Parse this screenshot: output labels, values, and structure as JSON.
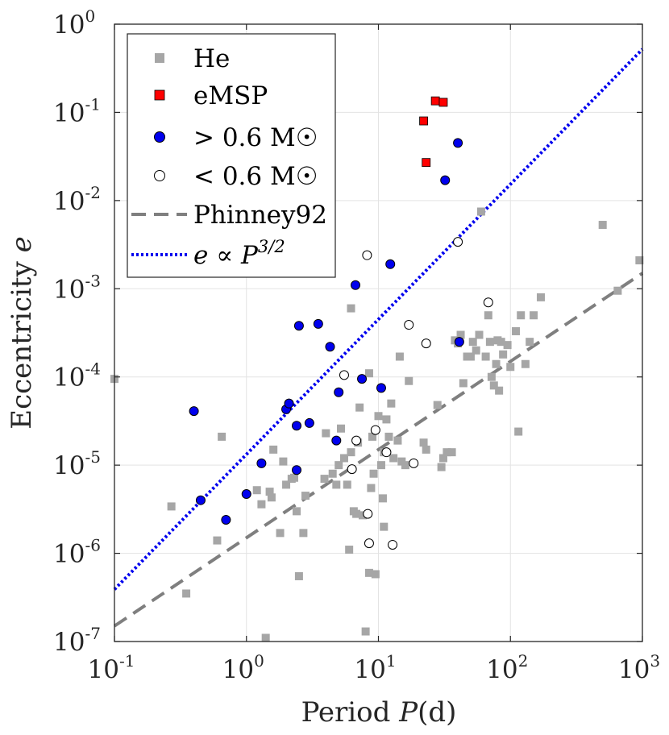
{
  "chart_data": {
    "type": "scatter",
    "xscale": "log",
    "yscale": "log",
    "xlim": [
      0.1,
      1000
    ],
    "ylim": [
      1e-07,
      1
    ],
    "xlabel_prefix": "Period ",
    "xlabel_var": "P",
    "xlabel_suffix": "(d)",
    "ylabel_prefix": "Eccentricity ",
    "ylabel_var": "e",
    "grid": true,
    "legend_position": "top-left",
    "x_ticks": [
      {
        "base": "10",
        "exp": "-1",
        "value": 0.1
      },
      {
        "base": "10",
        "exp": "0",
        "value": 1
      },
      {
        "base": "10",
        "exp": "1",
        "value": 10
      },
      {
        "base": "10",
        "exp": "2",
        "value": 100
      },
      {
        "base": "10",
        "exp": "3",
        "value": 1000
      }
    ],
    "y_ticks": [
      {
        "base": "10",
        "exp": "-7",
        "value": 1e-07
      },
      {
        "base": "10",
        "exp": "-6",
        "value": 1e-06
      },
      {
        "base": "10",
        "exp": "-5",
        "value": 1e-05
      },
      {
        "base": "10",
        "exp": "-4",
        "value": 0.0001
      },
      {
        "base": "10",
        "exp": "-3",
        "value": 0.001
      },
      {
        "base": "10",
        "exp": "-2",
        "value": 0.01
      },
      {
        "base": "10",
        "exp": "-1",
        "value": 0.1
      },
      {
        "base": "10",
        "exp": "0",
        "value": 1
      }
    ],
    "legend": [
      {
        "label": "He",
        "marker": "square",
        "color": "#a6a6a6"
      },
      {
        "label": "eMSP",
        "marker": "square",
        "color": "#ff0000"
      },
      {
        "label": "> 0.6 M☉",
        "marker": "circle",
        "color": "#0000ee"
      },
      {
        "label": "< 0.6 M☉",
        "marker": "circle",
        "color": "#ffffff"
      },
      {
        "label": "Phinney92",
        "marker": "dashed-line",
        "color": "#7f7f7f"
      },
      {
        "label": "e ∝ P",
        "superscript": "3/2",
        "marker": "dotted-line",
        "color": "#0000ee"
      }
    ],
    "lines": [
      {
        "name": "Phinney92",
        "style": "dashed",
        "color": "#7f7f7f",
        "x": [
          0.1,
          1000
        ],
        "y": [
          1.5e-07,
          0.0015
        ]
      },
      {
        "name": "e ∝ P^3/2",
        "style": "dotted",
        "color": "#0000ee",
        "x": [
          0.1,
          1000
        ],
        "y": [
          3.9e-07,
          0.52
        ]
      }
    ],
    "series": [
      {
        "name": "He",
        "marker": "square",
        "color": "#a6a6a6",
        "x": [
          0.1,
          0.27,
          0.35,
          0.6,
          0.65,
          1.2,
          1.3,
          1.4,
          1.5,
          1.55,
          1.6,
          1.8,
          1.9,
          2.0,
          2.2,
          2.3,
          2.4,
          2.5,
          2.7,
          2.8,
          3.9,
          4.0,
          4.5,
          4.8,
          5.0,
          5.2,
          5.5,
          5.8,
          6.0,
          6.2,
          6.5,
          6.8,
          7.0,
          7.2,
          7.6,
          8.0,
          8.5,
          8.8,
          9.0,
          9.2,
          9.5,
          10.0,
          10.5,
          10.8,
          11.0,
          11.5,
          12.0,
          12.5,
          13.0,
          14.0,
          14.5,
          15.0,
          16.0,
          17.0,
          22.0,
          23.0,
          28.0,
          30.0,
          31.0,
          33.0,
          36.0,
          38.0,
          40.0,
          42.0,
          44.0,
          47.0,
          50.0,
          52.0,
          55.0,
          58.0,
          60.0,
          65.0,
          68.0,
          70.0,
          72.0,
          75.0,
          78.0,
          80.0,
          82.0,
          85.0,
          88.0,
          95.0,
          100.0,
          110.0,
          115.0,
          120.0,
          130.0,
          140.0,
          150.0,
          170.0,
          500.0,
          650.0,
          950.0,
          6.2,
          8.5,
          11.0
        ],
        "y": [
          9.5e-05,
          3.4e-06,
          3.5e-07,
          1.4e-06,
          2.1e-05,
          5.2e-06,
          3.6e-06,
          1.1e-07,
          5e-06,
          4.3e-06,
          1.5e-05,
          1.7e-06,
          1.1e-05,
          6e-06,
          7e-06,
          7.2e-06,
          3e-06,
          5.5e-07,
          1.7e-06,
          4.5e-06,
          7e-06,
          2.3e-05,
          8e-06,
          6e-06,
          1e-05,
          2.6e-05,
          1.2e-05,
          6e-06,
          1.1e-06,
          1.4e-05,
          3e-06,
          2.8e-06,
          1.8e-05,
          4.5e-05,
          2.7e-06,
          1.3e-07,
          6e-07,
          5.5e-06,
          2.1e-05,
          8e-06,
          5.8e-07,
          3.6e-05,
          1e-05,
          4.2e-06,
          1.4e-05,
          3.3e-05,
          2.1e-05,
          5e-05,
          1.2e-05,
          1.9e-05,
          0.00017,
          1.1e-05,
          1e-05,
          9e-05,
          1.8e-05,
          1.5e-05,
          4.8e-05,
          9.5e-06,
          1.2e-05,
          1.4e-05,
          1.4e-05,
          0.00026,
          0.00024,
          0.0003,
          8.5e-05,
          0.00017,
          0.00017,
          0.00025,
          0.0002,
          0.0003,
          0.0075,
          0.00017,
          0.0005,
          0.00025,
          0.0001,
          8e-05,
          0.00014,
          0.00026,
          7e-05,
          0.00025,
          0.00018,
          0.00023,
          0.00013,
          0.00033,
          2.4e-05,
          0.0005,
          0.00014,
          0.00025,
          0.0005,
          0.0008,
          0.0053,
          0.00095,
          0.0021,
          0.0006,
          0.00011,
          2e-06
        ]
      },
      {
        "name": "eMSP",
        "marker": "square",
        "color": "#ff0000",
        "x": [
          22.0,
          23.0,
          27.0,
          31.0
        ],
        "y": [
          0.08,
          0.027,
          0.135,
          0.13
        ]
      },
      {
        "name": "> 0.6 M☉",
        "marker": "circle",
        "color": "#0000ee",
        "x": [
          0.4,
          0.45,
          0.7,
          1.0,
          1.3,
          2.0,
          2.1,
          2.4,
          2.4,
          2.5,
          3.0,
          3.5,
          4.3,
          4.8,
          5.0,
          6.7,
          7.5,
          10.5,
          12.3,
          32.0,
          40.0,
          41.0
        ],
        "y": [
          4.1e-05,
          4e-06,
          2.4e-06,
          4.7e-06,
          1.05e-05,
          4.3e-05,
          5e-05,
          2.8e-05,
          8.8e-06,
          0.00038,
          3e-05,
          0.0004,
          0.00022,
          1.9e-05,
          6.7e-05,
          0.0011,
          9.5e-05,
          7.5e-05,
          0.0019,
          0.017,
          0.045,
          0.00025
        ]
      },
      {
        "name": "< 0.6 M☉",
        "marker": "circle",
        "color": "#ffffff",
        "x": [
          5.5,
          6.3,
          6.8,
          8.2,
          8.3,
          8.5,
          9.5,
          11.5,
          12.8,
          17.0,
          18.5,
          23.0,
          40.0,
          68.0
        ],
        "y": [
          0.000105,
          9e-06,
          1.9e-05,
          0.0024,
          2.8e-06,
          1.3e-06,
          2.5e-05,
          1.4e-05,
          1.25e-06,
          0.00039,
          1.05e-05,
          0.00024,
          0.0034,
          0.0007
        ]
      }
    ]
  }
}
